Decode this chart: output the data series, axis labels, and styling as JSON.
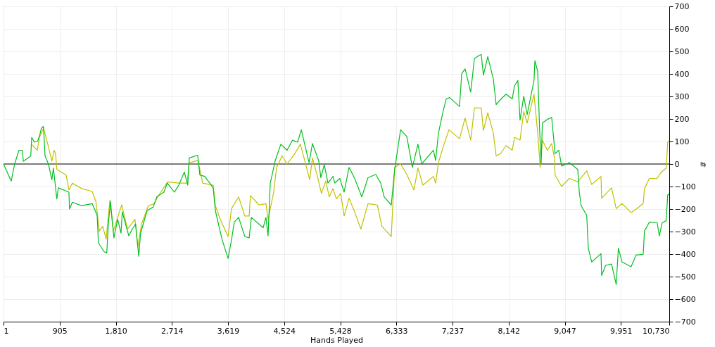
{
  "chart_data": {
    "type": "line",
    "xlabel": "Hands Played",
    "ylabel": "#",
    "xlim": [
      1,
      10730
    ],
    "ylim": [
      -700,
      700
    ],
    "xticks": [
      {
        "value": 1,
        "label": "1"
      },
      {
        "value": 905,
        "label": "905"
      },
      {
        "value": 1810,
        "label": "1,810"
      },
      {
        "value": 2714,
        "label": "2,714"
      },
      {
        "value": 3619,
        "label": "3,619"
      },
      {
        "value": 4524,
        "label": "4,524"
      },
      {
        "value": 5428,
        "label": "5,428"
      },
      {
        "value": 6333,
        "label": "6,333"
      },
      {
        "value": 7237,
        "label": "7,237"
      },
      {
        "value": 8142,
        "label": "8,142"
      },
      {
        "value": 9047,
        "label": "9,047"
      },
      {
        "value": 9951,
        "label": "9,951"
      },
      {
        "value": 10730,
        "label": "10,730"
      }
    ],
    "yticks": [
      -700,
      -600,
      -500,
      -400,
      -300,
      -200,
      -100,
      0,
      100,
      200,
      300,
      400,
      500,
      600,
      700
    ],
    "grid": true,
    "ref_lines": [
      {
        "axis": "y",
        "value": 0,
        "color": "#000000"
      }
    ],
    "series": [
      {
        "color": "#00c020",
        "x": [
          1,
          125,
          180,
          250,
          305,
          320,
          440,
          455,
          500,
          555,
          590,
          610,
          645,
          670,
          725,
          780,
          805,
          860,
          885,
          1055,
          1065,
          1110,
          1260,
          1430,
          1510,
          1530,
          1620,
          1665,
          1690,
          1725,
          1780,
          1840,
          1895,
          1915,
          2020,
          2075,
          2130,
          2180,
          2210,
          2315,
          2415,
          2470,
          2585,
          2640,
          2755,
          2825,
          2915,
          2970,
          2995,
          3130,
          3165,
          3245,
          3380,
          3415,
          3525,
          3620,
          3675,
          3720,
          3790,
          3890,
          3960,
          3995,
          4185,
          4230,
          4265,
          4300,
          4380,
          4470,
          4570,
          4660,
          4740,
          4800,
          4865,
          4925,
          4980,
          5080,
          5115,
          5170,
          5230,
          5310,
          5340,
          5420,
          5490,
          5570,
          5660,
          5775,
          5875,
          6000,
          6080,
          6135,
          6250,
          6305,
          6400,
          6500,
          6590,
          6680,
          6740,
          6930,
          6965,
          7010,
          7080,
          7135,
          7190,
          7350,
          7385,
          7440,
          7530,
          7590,
          7670,
          7700,
          7735,
          7805,
          7895,
          7940,
          8010,
          8100,
          8200,
          8235,
          8290,
          8325,
          8385,
          8440,
          8550,
          8565,
          8610,
          8640,
          8665,
          8685,
          8765,
          8835,
          8890,
          8950,
          8995,
          9120,
          9255,
          9280,
          9310,
          9400,
          9425,
          9480,
          9630,
          9640,
          9705,
          9800,
          9875,
          9910,
          9970,
          10115,
          10195,
          10310,
          10330,
          10410,
          10535,
          10570,
          10615,
          10680,
          10705,
          10730
        ],
        "values": [
          0,
          -76,
          0,
          61,
          61,
          12,
          36,
          118,
          97,
          103,
          134,
          158,
          167,
          36,
          0,
          -70,
          -18,
          -155,
          -106,
          -125,
          -200,
          -170,
          -185,
          -176,
          -228,
          -350,
          -389,
          -395,
          -267,
          -167,
          -328,
          -246,
          -307,
          -213,
          -319,
          -289,
          -267,
          -410,
          -307,
          -207,
          -191,
          -146,
          -125,
          -85,
          -125,
          -94,
          -36,
          -94,
          27,
          39,
          -49,
          -55,
          -106,
          -207,
          -337,
          -419,
          -337,
          -258,
          -237,
          -322,
          -328,
          -237,
          -283,
          -237,
          -319,
          -85,
          15,
          88,
          61,
          106,
          97,
          152,
          76,
          6,
          91,
          15,
          -61,
          -3,
          -85,
          -55,
          -85,
          -64,
          -125,
          -15,
          -64,
          -146,
          -61,
          -46,
          -85,
          -146,
          -182,
          -24,
          152,
          122,
          -15,
          88,
          0,
          61,
          15,
          137,
          228,
          289,
          295,
          255,
          401,
          422,
          319,
          468,
          483,
          486,
          395,
          477,
          377,
          264,
          286,
          310,
          289,
          346,
          371,
          195,
          301,
          219,
          371,
          459,
          410,
          158,
          0,
          182,
          198,
          207,
          46,
          61,
          -9,
          6,
          -24,
          -125,
          -185,
          -228,
          -374,
          -435,
          -398,
          -495,
          -450,
          -444,
          -535,
          -374,
          -435,
          -456,
          -404,
          -401,
          -298,
          -258,
          -261,
          -319,
          -261,
          -252,
          -137,
          -134
        ]
      },
      {
        "color": "#c0c000",
        "x": [
          450,
          545,
          580,
          645,
          715,
          780,
          815,
          840,
          860,
          1010,
          1055,
          1110,
          1260,
          1430,
          1490,
          1545,
          1600,
          1655,
          1715,
          1770,
          1905,
          2000,
          2120,
          2165,
          2225,
          2335,
          2430,
          2485,
          2645,
          2825,
          2960,
          2995,
          3130,
          3165,
          3210,
          3380,
          3415,
          3495,
          3620,
          3675,
          3790,
          3890,
          3960,
          3980,
          4120,
          4230,
          4265,
          4355,
          4400,
          4490,
          4570,
          4695,
          4785,
          4855,
          4935,
          4980,
          5060,
          5125,
          5195,
          5250,
          5310,
          5365,
          5435,
          5490,
          5570,
          5660,
          5760,
          5875,
          6025,
          6100,
          6250,
          6305,
          6400,
          6500,
          6615,
          6680,
          6760,
          6930,
          6965,
          7010,
          7100,
          7180,
          7350,
          7440,
          7530,
          7590,
          7700,
          7735,
          7805,
          7895,
          7940,
          8010,
          8100,
          8200,
          8235,
          8325,
          8385,
          8440,
          8550,
          8610,
          8650,
          8685,
          8765,
          8835,
          8880,
          8890,
          8995,
          9120,
          9255,
          9400,
          9480,
          9630,
          9640,
          9800,
          9875,
          9970,
          10115,
          10195,
          10310,
          10330,
          10410,
          10535,
          10590,
          10680,
          10705,
          10730
        ],
        "values": [
          88,
          61,
          118,
          158,
          88,
          12,
          61,
          46,
          -24,
          -49,
          -115,
          -85,
          -109,
          -122,
          -167,
          -298,
          -277,
          -334,
          -161,
          -298,
          -182,
          -289,
          -246,
          -368,
          -267,
          -185,
          -176,
          -146,
          -79,
          -85,
          -85,
          6,
          15,
          -24,
          -85,
          -94,
          -185,
          -246,
          -322,
          -198,
          -146,
          -231,
          -231,
          -140,
          -182,
          -176,
          -246,
          -125,
          -18,
          36,
          0,
          46,
          88,
          15,
          -70,
          27,
          -55,
          -131,
          -76,
          -146,
          -109,
          -155,
          -131,
          -231,
          -152,
          -213,
          -289,
          -176,
          -182,
          -277,
          -322,
          -15,
          0,
          -46,
          -115,
          -18,
          -94,
          -55,
          -85,
          6,
          88,
          152,
          112,
          204,
          106,
          249,
          249,
          149,
          228,
          137,
          36,
          46,
          82,
          61,
          118,
          106,
          234,
          182,
          310,
          137,
          -15,
          106,
          61,
          91,
          27,
          -49,
          -100,
          -64,
          -79,
          -30,
          -91,
          -55,
          -152,
          -106,
          -198,
          -176,
          -216,
          -201,
          -176,
          -109,
          -64,
          -64,
          -40,
          -18,
          97,
          103
        ]
      }
    ]
  }
}
